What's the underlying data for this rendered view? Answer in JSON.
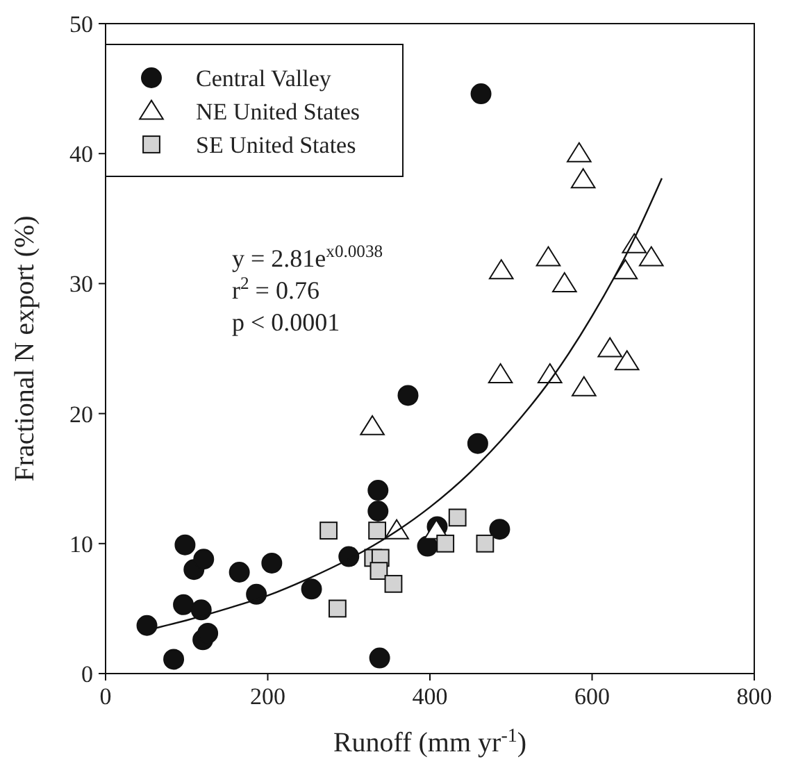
{
  "chart_data": {
    "type": "scatter",
    "xlabel": "Runoff (mm yr$^{-1}$)",
    "ylabel": "Fractional N export (%)",
    "xlim": [
      0,
      800
    ],
    "xticks": [
      0,
      200,
      400,
      600,
      800
    ],
    "ylim": [
      0,
      50
    ],
    "yticks": [
      0,
      10,
      20,
      30,
      40,
      50
    ],
    "grid": false,
    "legend": "top left",
    "annotations": [
      "y = 2.81e$^{x0.0038}$",
      "r$^{2}$ = 0.76",
      "p < 0.0001"
    ],
    "series": [
      {
        "name": "Central Valley",
        "color": "#111111",
        "marker": "circle",
        "x": [
          51,
          84,
          98,
          96,
          109,
          121,
          118,
          120,
          126,
          165,
          186,
          205,
          254,
          300,
          336,
          336,
          338,
          373,
          397,
          409,
          459,
          463,
          486
        ],
        "values": [
          3.7,
          1.1,
          9.9,
          5.3,
          8.0,
          8.8,
          4.9,
          2.6,
          3.1,
          7.8,
          6.1,
          8.5,
          6.5,
          9.0,
          14.1,
          12.5,
          1.2,
          21.4,
          9.8,
          11.3,
          17.7,
          44.6,
          11.1
        ]
      },
      {
        "name": "NE United States",
        "color": "#ffffff",
        "marker": "triangle",
        "x": [
          329,
          359,
          408,
          487,
          488,
          546,
          548,
          566,
          584,
          589,
          590,
          622,
          641,
          643,
          652,
          673
        ],
        "values": [
          19,
          11,
          11,
          23,
          31,
          32,
          23,
          30,
          40,
          38,
          22,
          25,
          31,
          24,
          33,
          32
        ]
      },
      {
        "name": "SE United States",
        "color": "#d3d3d3",
        "marker": "square",
        "x": [
          275,
          286,
          335,
          330,
          339,
          337,
          355,
          419,
          434,
          468
        ],
        "values": [
          11,
          5,
          11,
          8.9,
          8.9,
          7.9,
          6.9,
          10,
          12,
          10
        ]
      },
      {
        "type": "line",
        "color": "#111111",
        "x": [
          62,
          100,
          150,
          200,
          250,
          300,
          350,
          400,
          450,
          500,
          550,
          600,
          650,
          686
        ],
        "values": [
          3.5,
          4.1,
          5.0,
          6.0,
          7.3,
          8.8,
          10.6,
          12.8,
          15.5,
          18.8,
          22.7,
          27.5,
          33.2,
          38.1
        ]
      }
    ]
  }
}
